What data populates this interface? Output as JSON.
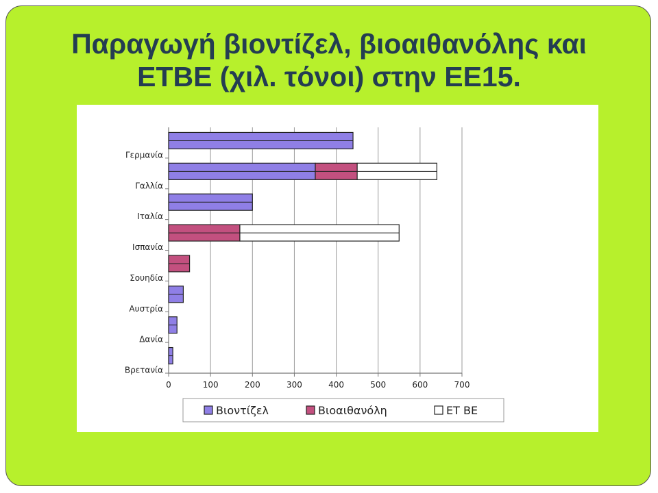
{
  "slide": {
    "title_line1": "Παραγωγή βιοντίζελ, βιοαιθανόλης και",
    "title_line2": "ETBE (χιλ. τόνοι) στην ΕΕ15."
  },
  "chart_data": {
    "type": "bar",
    "orientation": "horizontal",
    "stacked": true,
    "categories": [
      "Γερμανία",
      "Γαλλία",
      "Ιταλία",
      "Ισπανία",
      "Σουηδία",
      "Αυστρία",
      "Δανία",
      "Βρετανία"
    ],
    "series": [
      {
        "name": "Βιοντίζελ",
        "values": [
          440,
          350,
          200,
          0,
          0,
          35,
          20,
          10
        ],
        "color": "#8f7fe6"
      },
      {
        "name": "Βιοαιθανόλη",
        "values": [
          0,
          100,
          0,
          170,
          50,
          0,
          0,
          0
        ],
        "color": "#c3507f"
      },
      {
        "name": "ET BE",
        "values": [
          0,
          190,
          0,
          380,
          0,
          0,
          0,
          0
        ],
        "color": "#ffffff"
      }
    ],
    "xlim": [
      0,
      700
    ],
    "xticks": [
      0,
      100,
      200,
      300,
      400,
      500,
      600,
      700
    ],
    "grid": true,
    "legend_position": "bottom"
  }
}
